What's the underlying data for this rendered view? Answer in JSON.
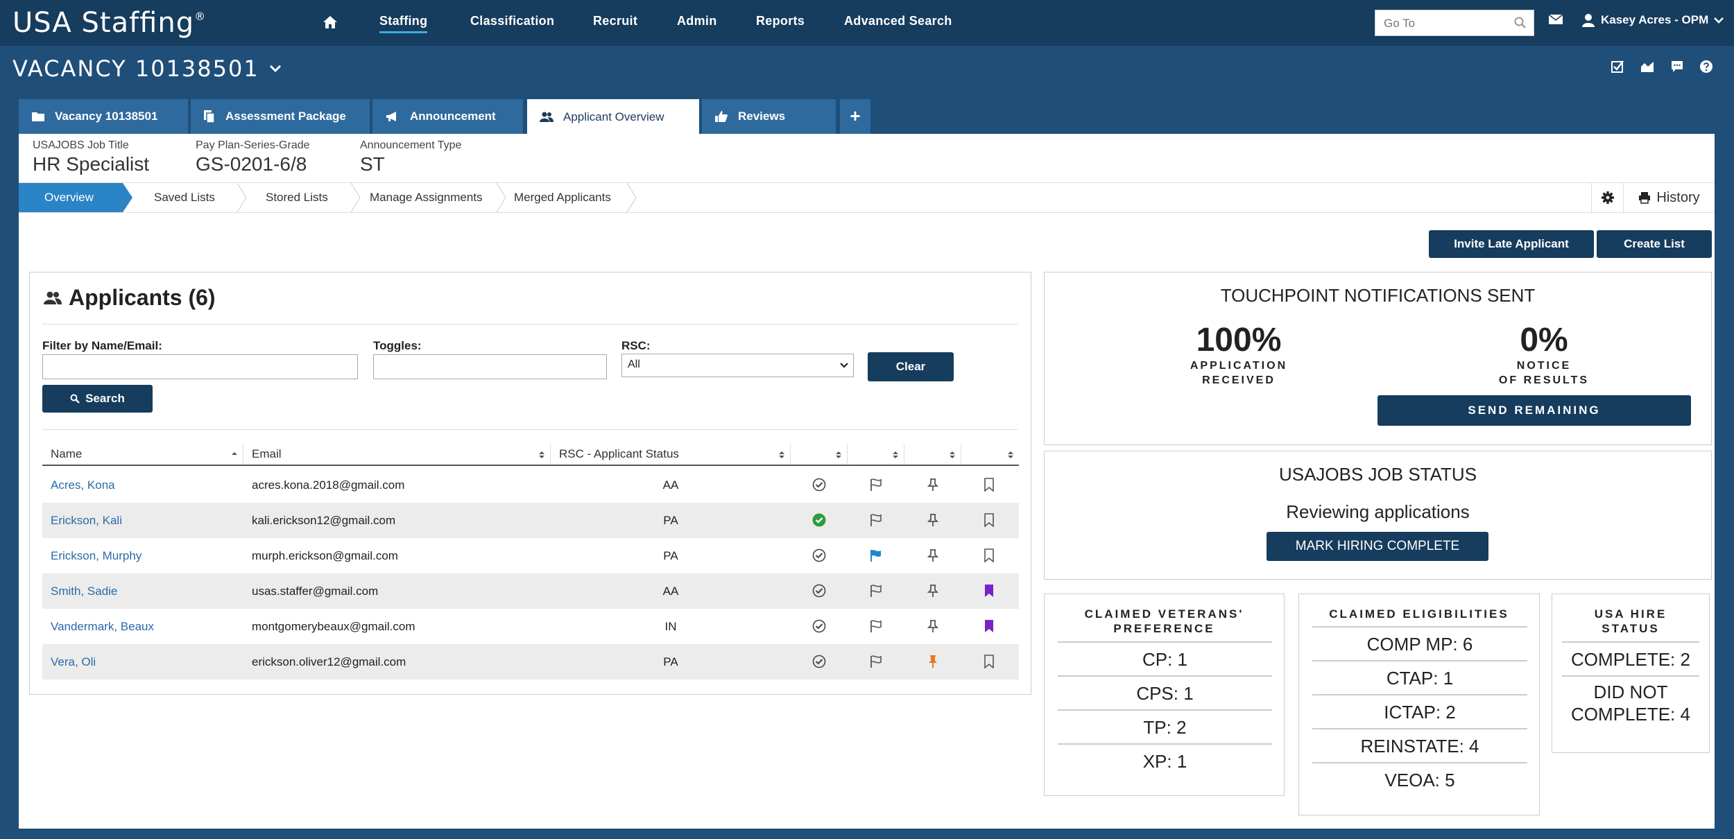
{
  "app": {
    "logo": "USA Stafﬁng",
    "logo_mark": "®"
  },
  "topnav": {
    "items": [
      "Staffing",
      "Classification",
      "Recruit",
      "Admin",
      "Reports",
      "Advanced Search"
    ],
    "goto_placeholder": "Go To",
    "user": "Kasey Acres - OPM"
  },
  "vacancy": {
    "title": "VACANCY 10138501"
  },
  "tabs": [
    {
      "label": "Vacancy 10138501",
      "icon": "folder-icon"
    },
    {
      "label": "Assessment Package",
      "icon": "documents-icon"
    },
    {
      "label": "Announcement",
      "icon": "megaphone-icon"
    },
    {
      "label": "Applicant Overview",
      "icon": "users-icon"
    },
    {
      "label": "Reviews",
      "icon": "thumbs-up-icon"
    }
  ],
  "meta": [
    {
      "label": "USAJOBS Job Title",
      "value": "HR Specialist"
    },
    {
      "label": "Pay Plan-Series-Grade",
      "value": "GS-0201-6/8"
    },
    {
      "label": "Announcement Type",
      "value": "ST"
    }
  ],
  "subnav": {
    "items": [
      "Overview",
      "Saved Lists",
      "Stored Lists",
      "Manage Assignments",
      "Merged Applicants"
    ],
    "history": "History"
  },
  "actions": {
    "invite": "Invite Late Applicant",
    "create_list": "Create List"
  },
  "applicants": {
    "title": "Applicants (6)",
    "filter_label": "Filter by Name/Email:",
    "toggles_label": "Toggles:",
    "rsc_label": "RSC:",
    "rsc_value": "All",
    "clear": "Clear",
    "search": "Search",
    "columns": [
      "Name",
      "Email",
      "RSC - Applicant Status"
    ],
    "rows": [
      {
        "name": "Acres, Kona",
        "email": "acres.kona.2018@gmail.com",
        "status": "AA",
        "check": "check-outline",
        "flag": "flag-outline",
        "pin": "pin-gray",
        "bookmark": "bookmark-outline"
      },
      {
        "name": "Erickson, Kali",
        "email": "kali.erickson12@gmail.com",
        "status": "PA",
        "check": "check-green",
        "flag": "flag-outline",
        "pin": "pin-gray",
        "bookmark": "bookmark-outline"
      },
      {
        "name": "Erickson, Murphy",
        "email": "murph.erickson@gmail.com",
        "status": "PA",
        "check": "check-outline",
        "flag": "flag-blue",
        "pin": "pin-gray",
        "bookmark": "bookmark-outline"
      },
      {
        "name": "Smith, Sadie",
        "email": "usas.staffer@gmail.com",
        "status": "AA",
        "check": "check-outline",
        "flag": "flag-outline",
        "pin": "pin-gray",
        "bookmark": "bookmark-purple"
      },
      {
        "name": "Vandermark, Beaux",
        "email": "montgomerybeaux@gmail.com",
        "status": "IN",
        "check": "check-outline",
        "flag": "flag-outline",
        "pin": "pin-gray",
        "bookmark": "bookmark-purple"
      },
      {
        "name": "Vera, Oli",
        "email": "erickson.oliver12@gmail.com",
        "status": "PA",
        "check": "check-outline",
        "flag": "flag-outline",
        "pin": "pin-orange",
        "bookmark": "bookmark-outline"
      }
    ]
  },
  "touchpoint": {
    "title": "TOUCHPOINT NOTIFICATIONS SENT",
    "app_received_pct": "100%",
    "app_received_l1": "APPLICATION",
    "app_received_l2": "RECEIVED",
    "notice_pct": "0%",
    "notice_l1": "NOTICE",
    "notice_l2": "OF RESULTS",
    "send_remaining": "SEND REMAINING"
  },
  "job_status": {
    "title": "USAJOBS JOB STATUS",
    "status": "Reviewing applications",
    "button": "MARK HIRING COMPLETE"
  },
  "veterans": {
    "title_l1": "CLAIMED VETERANS'",
    "title_l2": "PREFERENCE",
    "items": [
      "CP: 1",
      "CPS: 1",
      "TP: 2",
      "XP: 1"
    ]
  },
  "eligibilities": {
    "title": "CLAIMED ELIGIBILITIES",
    "items": [
      "COMP MP: 6",
      "CTAP: 1",
      "ICTAP: 2",
      "REINSTATE: 4",
      "VEOA: 5"
    ]
  },
  "usahire": {
    "title_l1": "USA HIRE",
    "title_l2": "STATUS",
    "complete": "COMPLETE: 2",
    "did_not_l1": "DID NOT",
    "did_not_l2": "COMPLETE: 4"
  },
  "colors": {
    "navy": "#163c5e",
    "band": "#1f4e79",
    "tab": "#2e6a9e",
    "accent": "#2a84c6",
    "link": "#2a6aa8",
    "green": "#2e9c3c",
    "purple": "#7a22c8",
    "orange": "#e87722",
    "flag_blue": "#1f88c9"
  }
}
